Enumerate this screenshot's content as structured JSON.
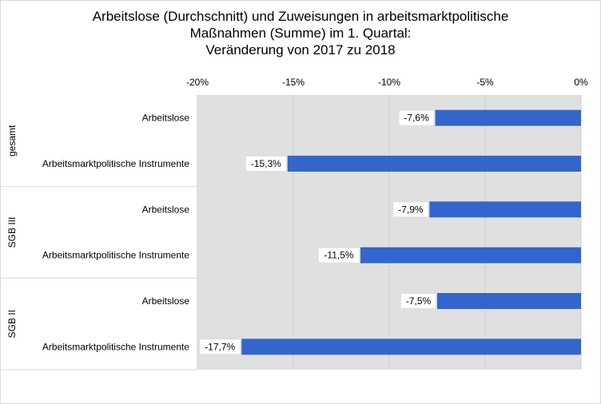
{
  "chart_data": {
    "type": "bar",
    "orientation": "horizontal",
    "title": [
      "Arbeitslose (Durchschnitt) und Zuweisungen in arbeitsmarktpolitische",
      "Maßnahmen (Summe) im 1. Quartal:",
      "Veränderung von 2017 zu 2018"
    ],
    "xlim": [
      -20,
      0
    ],
    "ticks": [
      -20,
      -15,
      -10,
      -5,
      0
    ],
    "tick_labels": [
      "-20%",
      "-15%",
      "-10%",
      "-5%",
      "0%"
    ],
    "groups": [
      {
        "name": "gesamt",
        "bars": [
          {
            "category": "Arbeitslose",
            "value": -7.6,
            "label": "-7,6%"
          },
          {
            "category": "Arbeitsmarktpolitische Instrumente",
            "value": -15.3,
            "label": "-15,3%"
          }
        ]
      },
      {
        "name": "SGB III",
        "bars": [
          {
            "category": "Arbeitslose",
            "value": -7.9,
            "label": "-7,9%"
          },
          {
            "category": "Arbeitsmarktpolitische Instrumente",
            "value": -11.5,
            "label": "-11,5%"
          }
        ]
      },
      {
        "name": "SGB II",
        "bars": [
          {
            "category": "Arbeitslose",
            "value": -7.5,
            "label": "-7,5%"
          },
          {
            "category": "Arbeitsmarktpolitische Instrumente",
            "value": -17.7,
            "label": "-17,7%"
          }
        ]
      }
    ],
    "grid": true,
    "legend": "none",
    "bar_color": "#3366cc",
    "plot_background": "#e0e0e0"
  }
}
